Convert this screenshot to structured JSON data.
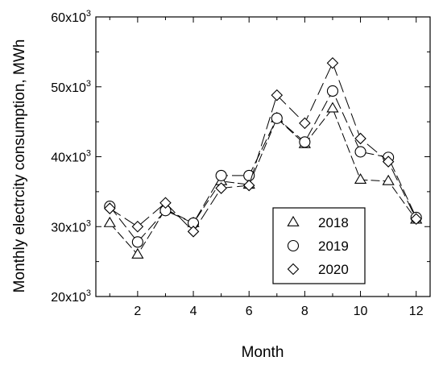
{
  "chart_data": {
    "type": "line",
    "xlabel": "Month",
    "ylabel": "Monthly electrcity  consumption, MWh",
    "xlim": [
      0.5,
      12.5
    ],
    "ylim": [
      20000,
      60000
    ],
    "x_ticks": [
      2,
      4,
      6,
      8,
      10,
      12
    ],
    "y_ticks": [
      {
        "value": 20000,
        "mantissa": "20x10",
        "exp": "3"
      },
      {
        "value": 30000,
        "mantissa": "30x10",
        "exp": "3"
      },
      {
        "value": 40000,
        "mantissa": "40x10",
        "exp": "3"
      },
      {
        "value": 50000,
        "mantissa": "50x10",
        "exp": "3"
      },
      {
        "value": 60000,
        "mantissa": "60x10",
        "exp": "3"
      }
    ],
    "grid": false,
    "legend_position": "bottom-right",
    "x": [
      1,
      2,
      3,
      4,
      5,
      6,
      7,
      8,
      9,
      10,
      11,
      12
    ],
    "series": [
      {
        "name": "2018",
        "marker": "triangle",
        "values": [
          30500,
          26000,
          32500,
          30500,
          36500,
          36000,
          45500,
          41800,
          46900,
          36700,
          36500,
          31000
        ]
      },
      {
        "name": "2019",
        "marker": "circle",
        "values": [
          32900,
          27800,
          32300,
          30500,
          37300,
          37300,
          45500,
          42100,
          49400,
          40700,
          39900,
          31300
        ]
      },
      {
        "name": "2020",
        "marker": "diamond",
        "values": [
          32600,
          30000,
          33400,
          29300,
          35500,
          35900,
          48800,
          44800,
          53400,
          42600,
          39300,
          31100
        ]
      }
    ]
  }
}
